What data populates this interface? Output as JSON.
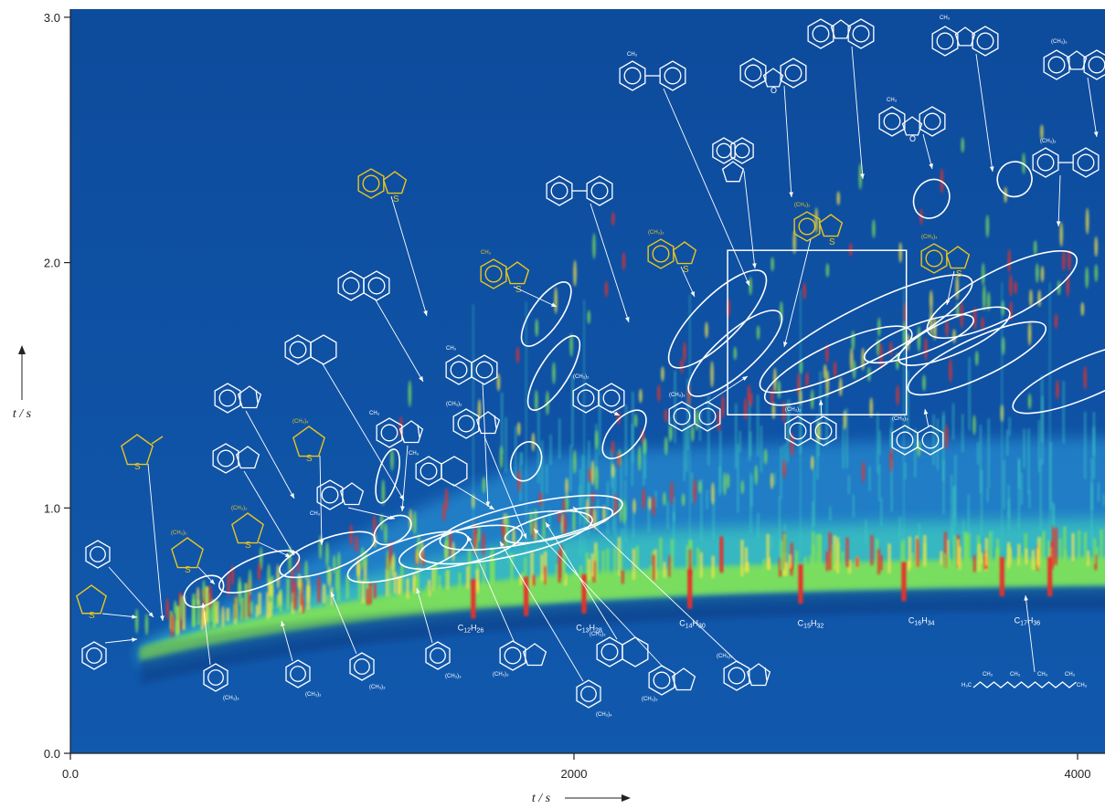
{
  "chart_data": {
    "type": "heatmap",
    "title": "",
    "xlabel": "t / s",
    "ylabel": "t / s",
    "xlim": [
      0,
      4200
    ],
    "ylim": [
      0,
      3.0
    ],
    "x_ticks": [
      {
        "value": 0,
        "label": "0.0"
      },
      {
        "value": 2000,
        "label": "2000"
      },
      {
        "value": 4000,
        "label": "4000"
      }
    ],
    "y_ticks": [
      {
        "value": 0,
        "label": "0.0"
      },
      {
        "value": 1,
        "label": "1.0"
      },
      {
        "value": 2,
        "label": "2.0"
      },
      {
        "value": 3,
        "label": "3.0"
      }
    ],
    "colors": {
      "background": "#0f4fa0",
      "band_low": "#2fa0e0",
      "band_mid": "#3fd0c0",
      "band_high": "#7ee05a",
      "peak_yellow": "#f2e34a",
      "peak_red": "#e8312a",
      "sulfur_structure": "#e8c520",
      "annotation": "#ffffff"
    },
    "alkane_labels": [
      {
        "x": 1590,
        "y": 0.5,
        "base": "C",
        "n": "12",
        "mid": "H",
        "m": "26"
      },
      {
        "x": 2060,
        "y": 0.5,
        "base": "C",
        "n": "13",
        "mid": "H",
        "m": "28"
      },
      {
        "x": 2470,
        "y": 0.52,
        "base": "C",
        "n": "14",
        "mid": "H",
        "m": "30"
      },
      {
        "x": 2940,
        "y": 0.52,
        "base": "C",
        "n": "15",
        "mid": "H",
        "m": "32"
      },
      {
        "x": 3380,
        "y": 0.53,
        "base": "C",
        "n": "16",
        "mid": "H",
        "m": "34"
      },
      {
        "x": 3800,
        "y": 0.53,
        "base": "C",
        "n": "17",
        "mid": "H",
        "m": "36"
      }
    ],
    "group_ellipses": [
      {
        "cx": 530,
        "cy": 0.66,
        "rx": 85,
        "ry": 0.055,
        "angle": -30
      },
      {
        "cx": 750,
        "cy": 0.74,
        "rx": 170,
        "ry": 0.06,
        "angle": -22
      },
      {
        "cx": 1020,
        "cy": 0.81,
        "rx": 200,
        "ry": 0.065,
        "angle": -20
      },
      {
        "cx": 1280,
        "cy": 0.91,
        "rx": 80,
        "ry": 0.05,
        "angle": -30
      },
      {
        "cx": 1340,
        "cy": 0.8,
        "rx": 250,
        "ry": 0.07,
        "angle": -18
      },
      {
        "cx": 1260,
        "cy": 1.13,
        "rx": 110,
        "ry": 0.04,
        "angle": -75
      },
      {
        "cx": 1550,
        "cy": 0.84,
        "rx": 250,
        "ry": 0.07,
        "angle": -13
      },
      {
        "cx": 1730,
        "cy": 0.88,
        "rx": 350,
        "ry": 0.08,
        "angle": -12
      },
      {
        "cx": 1830,
        "cy": 0.94,
        "rx": 370,
        "ry": 0.08,
        "angle": -12
      },
      {
        "cx": 1940,
        "cy": 0.93,
        "rx": 220,
        "ry": 0.05,
        "angle": -14
      },
      {
        "cx": 1810,
        "cy": 1.19,
        "rx": 80,
        "ry": 0.06,
        "angle": -70
      },
      {
        "cx": 1890,
        "cy": 1.79,
        "rx": 150,
        "ry": 0.06,
        "angle": -55
      },
      {
        "cx": 1920,
        "cy": 1.55,
        "rx": 170,
        "ry": 0.06,
        "angle": -58
      },
      {
        "cx": 2200,
        "cy": 1.3,
        "rx": 115,
        "ry": 0.06,
        "angle": -50
      },
      {
        "cx": 2570,
        "cy": 1.77,
        "rx": 260,
        "ry": 0.09,
        "angle": -45
      },
      {
        "cx": 2640,
        "cy": 1.63,
        "rx": 240,
        "ry": 0.08,
        "angle": -42
      },
      {
        "cx": 3160,
        "cy": 1.71,
        "rx": 470,
        "ry": 0.11,
        "angle": -27
      },
      {
        "cx": 3050,
        "cy": 1.58,
        "rx": 320,
        "ry": 0.09,
        "angle": -25
      },
      {
        "cx": 3370,
        "cy": 1.69,
        "rx": 230,
        "ry": 0.06,
        "angle": -20
      },
      {
        "cx": 3510,
        "cy": 1.7,
        "rx": 240,
        "ry": 0.07,
        "angle": -24
      },
      {
        "cx": 3600,
        "cy": 1.61,
        "rx": 300,
        "ry": 0.08,
        "angle": -25
      },
      {
        "cx": 3700,
        "cy": 1.87,
        "rx": 330,
        "ry": 0.1,
        "angle": -27
      },
      {
        "cx": 4030,
        "cy": 1.53,
        "rx": 310,
        "ry": 0.08,
        "angle": -23
      },
      {
        "cx": 3420,
        "cy": 2.26,
        "rx": 80,
        "ry": 0.07,
        "angle": -60
      },
      {
        "cx": 3750,
        "cy": 2.34,
        "rx": 70,
        "ry": 0.07,
        "angle": -60
      }
    ],
    "highlight_box": {
      "x0": 2610,
      "x1": 3320,
      "y0": 1.38,
      "y1": 2.05
    },
    "alkane_peaks": [
      {
        "x": 1600,
        "y": 0.63
      },
      {
        "x": 1810,
        "y": 0.64
      },
      {
        "x": 2040,
        "y": 0.65
      },
      {
        "x": 2460,
        "y": 0.67
      },
      {
        "x": 2900,
        "y": 0.69
      },
      {
        "x": 3310,
        "y": 0.7
      },
      {
        "x": 3700,
        "y": 0.72
      },
      {
        "x": 3890,
        "y": 0.72
      }
    ],
    "sub_labels": {
      "CH3": "CH₃",
      "CH3_2": "(CH₃)₂",
      "CH3_3": "(CH₃)₃",
      "CH3_4": "(CH₃)₄",
      "S": "S",
      "O": "O"
    },
    "alkane_structure_labels": [
      "CH₃",
      "CH₃",
      "CH₃",
      "CH₃",
      "H₃C",
      "CH₃"
    ]
  }
}
